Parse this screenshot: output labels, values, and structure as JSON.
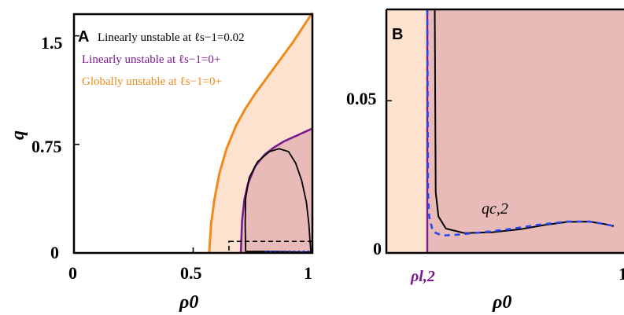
{
  "colors": {
    "globally_unstable_fill": "#fde3cf",
    "linearly_unstable_fill": "#e8bbb8",
    "black_curve": "#000000",
    "purple_curve": "#7a1a8c",
    "orange_curve": "#f08a1c",
    "blue_dashed": "#2648f0"
  },
  "chart_data": [
    {
      "panel": "A",
      "type": "line",
      "xlabel": "ρ0",
      "ylabel": "q",
      "xlim": [
        0,
        1
      ],
      "ylim": [
        0,
        1.65
      ],
      "xticks": [
        "0",
        "0.5",
        "1"
      ],
      "yticks": [
        "0",
        "0.75",
        "1.5"
      ],
      "legend": [
        {
          "text": "Linearly unstable at ℓs−1=0.02",
          "color": "#000000"
        },
        {
          "text": "Linearly unstable at ℓs−1=0+",
          "color": "#7a1a8c"
        },
        {
          "text": "Globally unstable at ℓs−1=0+",
          "color": "#f08a1c"
        }
      ],
      "series": [
        {
          "name": "Globally unstable at ℓs−1=0+",
          "color": "#f08a1c",
          "x": [
            0.567,
            0.575,
            0.59,
            0.61,
            0.64,
            0.68,
            0.72,
            0.76,
            0.8,
            0.84,
            0.88,
            0.92,
            0.96,
            1.0
          ],
          "y": [
            0.0,
            0.2,
            0.38,
            0.55,
            0.72,
            0.88,
            1.0,
            1.1,
            1.19,
            1.28,
            1.37,
            1.46,
            1.56,
            1.66
          ]
        },
        {
          "name": "Linearly unstable at ℓs−1=0+",
          "color": "#7a1a8c",
          "x": [
            0.7,
            0.705,
            0.715,
            0.73,
            0.76,
            0.8,
            0.84,
            0.88,
            0.92,
            0.96,
            1.0
          ],
          "y": [
            0.0,
            0.22,
            0.37,
            0.48,
            0.6,
            0.68,
            0.73,
            0.77,
            0.8,
            0.83,
            0.86
          ]
        },
        {
          "name": "Linearly unstable at ℓs−1=0.02",
          "color": "#000000",
          "x": [
            0.72,
            0.718,
            0.72,
            0.735,
            0.77,
            0.82,
            0.86,
            0.9,
            0.93,
            0.955,
            0.975,
            0.985,
            0.99,
            0.993,
            0.993,
            0.99,
            0.96,
            0.9,
            0.82,
            0.75,
            0.72
          ],
          "y": [
            0.01,
            0.2,
            0.38,
            0.52,
            0.63,
            0.7,
            0.72,
            0.7,
            0.62,
            0.5,
            0.35,
            0.2,
            0.08,
            0.02,
            0.01,
            0.008,
            0.005,
            0.008,
            0.01,
            0.01,
            0.01
          ]
        }
      ],
      "inset_box": {
        "x": [
          0.65,
          1.0
        ],
        "y": [
          0.0,
          0.08
        ]
      }
    },
    {
      "panel": "B",
      "type": "line",
      "xlabel": "ρ0",
      "xticks": [
        "1"
      ],
      "yticks": [
        "0",
        "0.05"
      ],
      "ylim": [
        0,
        0.08
      ],
      "annotations": [
        {
          "text": "qc,2",
          "color": "#000000"
        },
        {
          "text": "ρl,2",
          "color": "#7a1a8c"
        }
      ],
      "series": [
        {
          "name": "Linearly unstable at ℓs−1=0+",
          "color": "#7a1a8c",
          "x": [
            0.0,
            0.0
          ],
          "y": [
            0.0,
            0.08
          ]
        },
        {
          "name": "Linearly unstable at ℓs−1=0.02",
          "color": "#000000",
          "x": [
            0.04,
            0.045,
            0.06,
            0.1,
            0.2,
            0.35,
            0.5,
            0.63,
            0.75,
            0.87,
            0.95,
            1.0
          ],
          "y": [
            0.08,
            0.02,
            0.012,
            0.008,
            0.0065,
            0.0068,
            0.0078,
            0.0092,
            0.0102,
            0.0103,
            0.0095,
            0.0088
          ]
        },
        {
          "name": "blue dashed",
          "color": "#2648f0",
          "x": [
            0.0,
            0.002,
            0.004,
            0.01,
            0.03,
            0.08,
            0.16,
            0.3,
            0.45,
            0.6,
            0.75,
            0.87,
            0.95,
            1.0
          ],
          "y": [
            0.08,
            0.05,
            0.02,
            0.012,
            0.007,
            0.0057,
            0.006,
            0.0068,
            0.0079,
            0.0093,
            0.0103,
            0.0103,
            0.0095,
            0.0088
          ]
        }
      ]
    }
  ]
}
